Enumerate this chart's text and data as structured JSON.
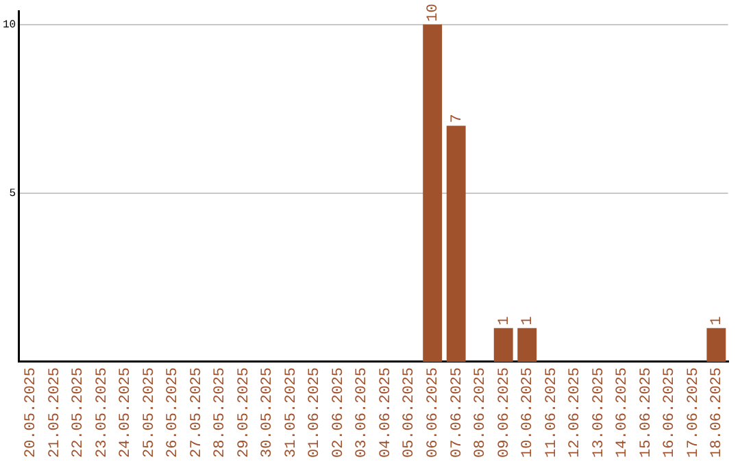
{
  "chart_data": {
    "type": "bar",
    "categories": [
      "20.05.2025",
      "21.05.2025",
      "22.05.2025",
      "23.05.2025",
      "24.05.2025",
      "25.05.2025",
      "26.05.2025",
      "27.05.2025",
      "28.05.2025",
      "29.05.2025",
      "30.05.2025",
      "31.05.2025",
      "01.06.2025",
      "02.06.2025",
      "03.06.2025",
      "04.06.2025",
      "05.06.2025",
      "06.06.2025",
      "07.06.2025",
      "08.06.2025",
      "09.06.2025",
      "10.06.2025",
      "11.06.2025",
      "12.06.2025",
      "13.06.2025",
      "14.06.2025",
      "15.06.2025",
      "16.06.2025",
      "17.06.2025",
      "18.06.2025"
    ],
    "values": [
      0,
      0,
      0,
      0,
      0,
      0,
      0,
      0,
      0,
      0,
      0,
      0,
      0,
      0,
      0,
      0,
      0,
      10,
      7,
      0,
      1,
      1,
      0,
      0,
      0,
      0,
      0,
      0,
      0,
      1
    ],
    "value_labels": [
      null,
      null,
      null,
      null,
      null,
      null,
      null,
      null,
      null,
      null,
      null,
      null,
      null,
      null,
      null,
      null,
      null,
      "10",
      "7",
      null,
      "1",
      "1",
      null,
      null,
      null,
      null,
      null,
      null,
      null,
      "1"
    ],
    "color": "#a0522d",
    "ylim": [
      0,
      10.4
    ],
    "yticks": [
      5,
      10
    ],
    "grid": "y",
    "legend": false
  }
}
